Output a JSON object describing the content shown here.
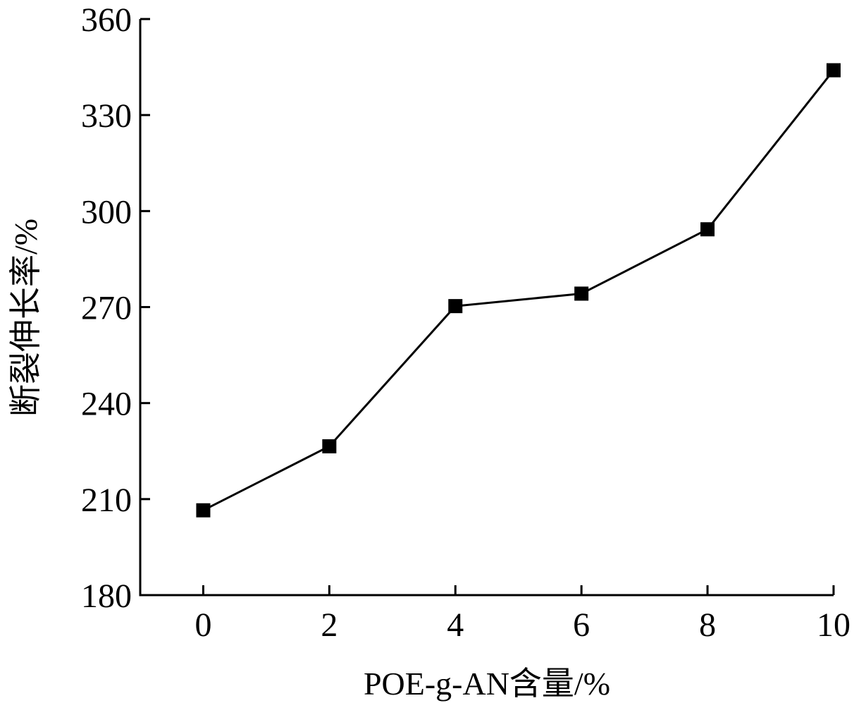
{
  "chart_data": {
    "type": "line",
    "title": "",
    "xlabel": "POE-g-AN含量/%",
    "ylabel": "断裂伸长率/%",
    "x": [
      0,
      2,
      4,
      6,
      8,
      10
    ],
    "xticks": [
      0,
      2,
      4,
      6,
      8,
      10
    ],
    "xlim": [
      -1,
      10
    ],
    "yticks": [
      180,
      210,
      240,
      270,
      300,
      330,
      360
    ],
    "ylim": [
      180,
      360
    ],
    "grid": false,
    "legend": "none",
    "marker": "square",
    "series": [
      {
        "values": [
          206.5,
          226.5,
          270.3,
          274.2,
          294.3,
          344
        ],
        "color": "#000000"
      }
    ]
  }
}
